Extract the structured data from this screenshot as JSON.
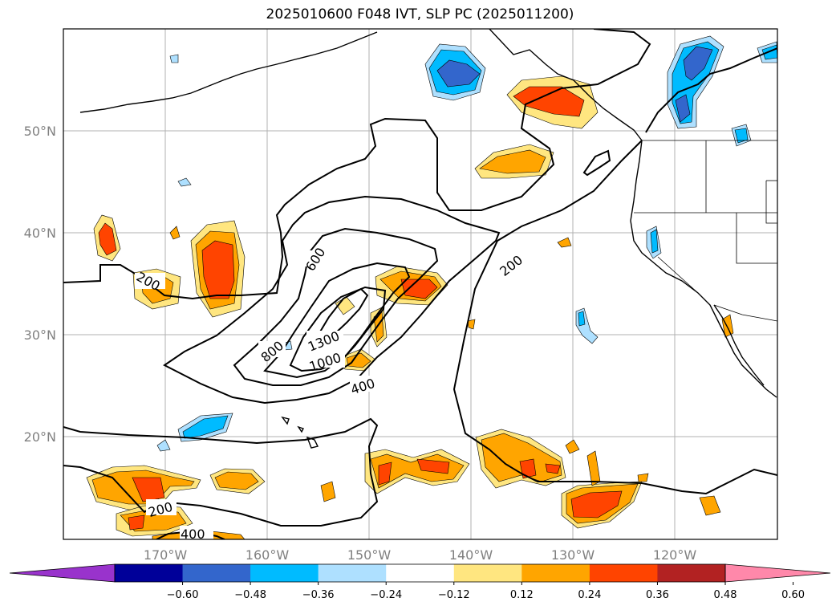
{
  "title": "2025010600 F048 IVT, SLP PC (2025011200)",
  "longitude_labels": [
    "170°W",
    "160°W",
    "150°W",
    "140°W",
    "130°W",
    "120°W"
  ],
  "latitude_labels": [
    "50°N",
    "40°N",
    "30°N",
    "20°N"
  ],
  "contour_labels": [
    "600",
    "200",
    "800",
    "1300",
    "1000",
    "400",
    "200",
    "400"
  ],
  "colorbar": {
    "colors": [
      "#9933cc",
      "#000099",
      "#3366cc",
      "#00bbff",
      "#aee0ff",
      "#ffffff",
      "#ffe680",
      "#ffa500",
      "#ff4400",
      "#b22222",
      "#ff88aa"
    ],
    "tick_labels": [
      "−0.60",
      "−0.48",
      "−0.36",
      "−0.24",
      "−0.12",
      "0.12",
      "0.24",
      "0.36",
      "0.48",
      "0.60"
    ]
  }
}
